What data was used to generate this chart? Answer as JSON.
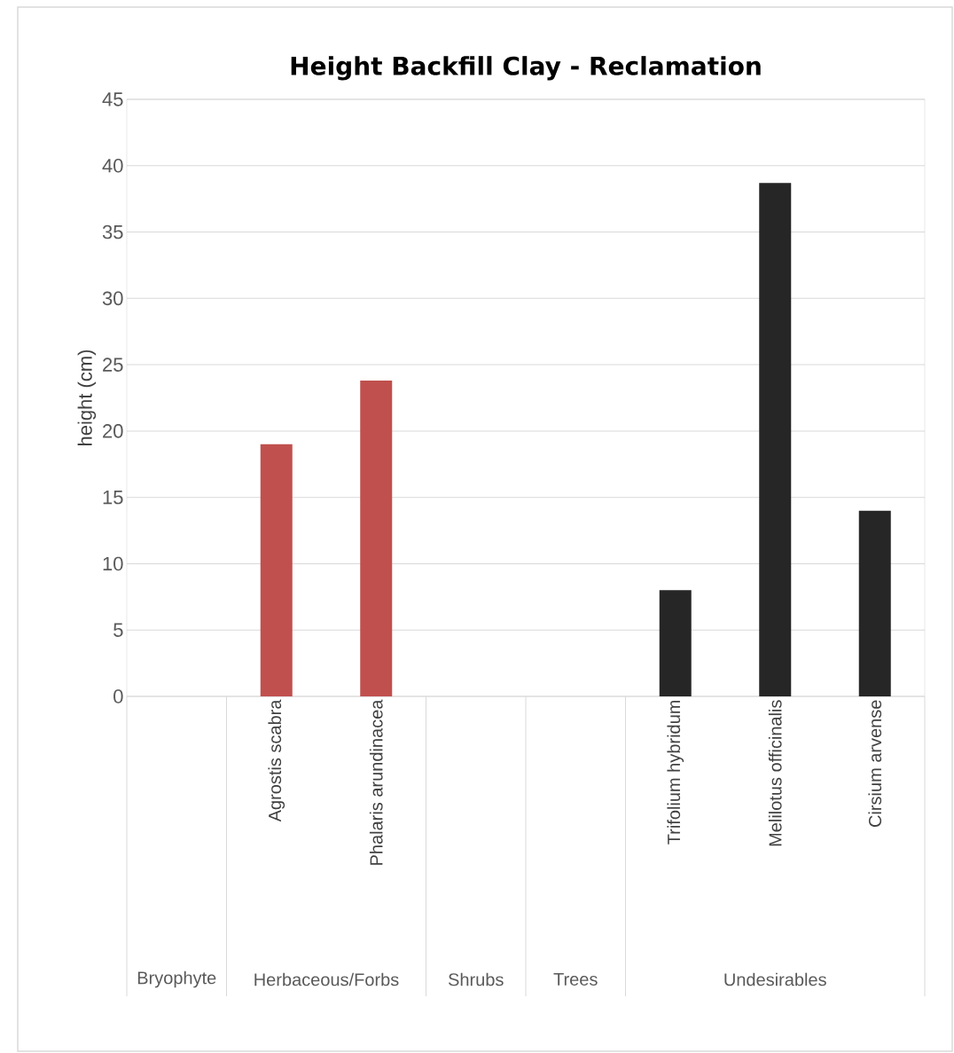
{
  "chart_data": {
    "type": "bar",
    "title": "Height   Backfill Clay - Reclamation",
    "ylabel": "height (cm)",
    "categories": [
      null,
      "Agrostis scabra",
      "Phalaris arundinacea",
      null,
      null,
      "Trifolium hybridum",
      "Melilotus officinalis",
      "Cirsium arvense"
    ],
    "values": [
      null,
      19.0,
      23.8,
      null,
      null,
      8.0,
      38.7,
      14.0
    ],
    "colors": [
      "#c0504d",
      "#c0504d",
      "#c0504d",
      "#c0504d",
      "#c0504d",
      "#262626",
      "#262626",
      "#262626"
    ],
    "ylim": [
      0,
      45
    ],
    "yticks": [
      0,
      5,
      10,
      15,
      20,
      25,
      30,
      35,
      40,
      45
    ],
    "grid": "y",
    "annotations": [
      "Bryophyte",
      "Herbaceous/Forbs",
      "Shrubs",
      "Trees",
      "Undesirables"
    ]
  }
}
